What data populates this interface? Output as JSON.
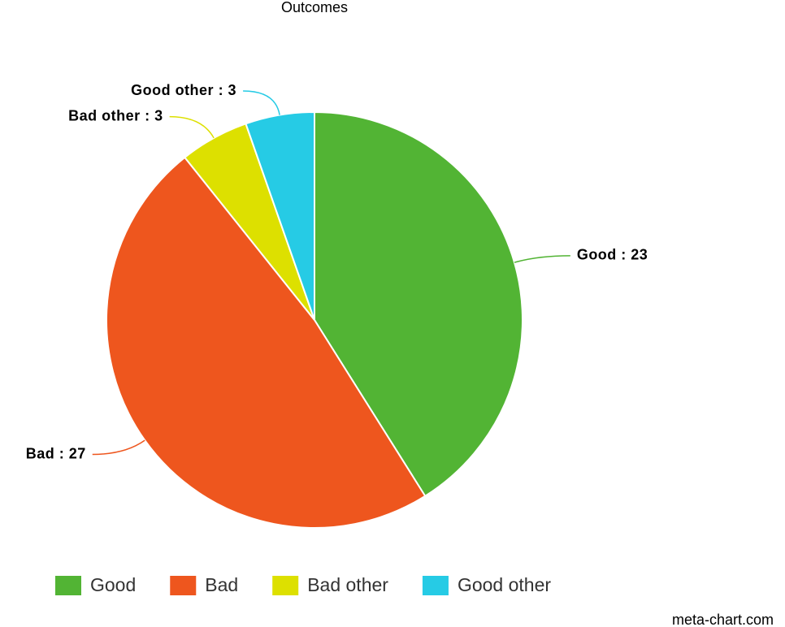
{
  "chart_data": {
    "type": "pie",
    "title": "Outcomes",
    "categories": [
      "Good",
      "Bad",
      "Bad other",
      "Good other"
    ],
    "values": [
      23,
      27,
      3,
      3
    ],
    "value_labels": [
      "Good : 23",
      "Bad : 27",
      "Bad other : 3",
      "Good other : 3"
    ],
    "colors": [
      "#52b434",
      "#ee561e",
      "#dde000",
      "#26cbe5"
    ],
    "legend": "bottom",
    "credit": "meta-chart.com"
  }
}
